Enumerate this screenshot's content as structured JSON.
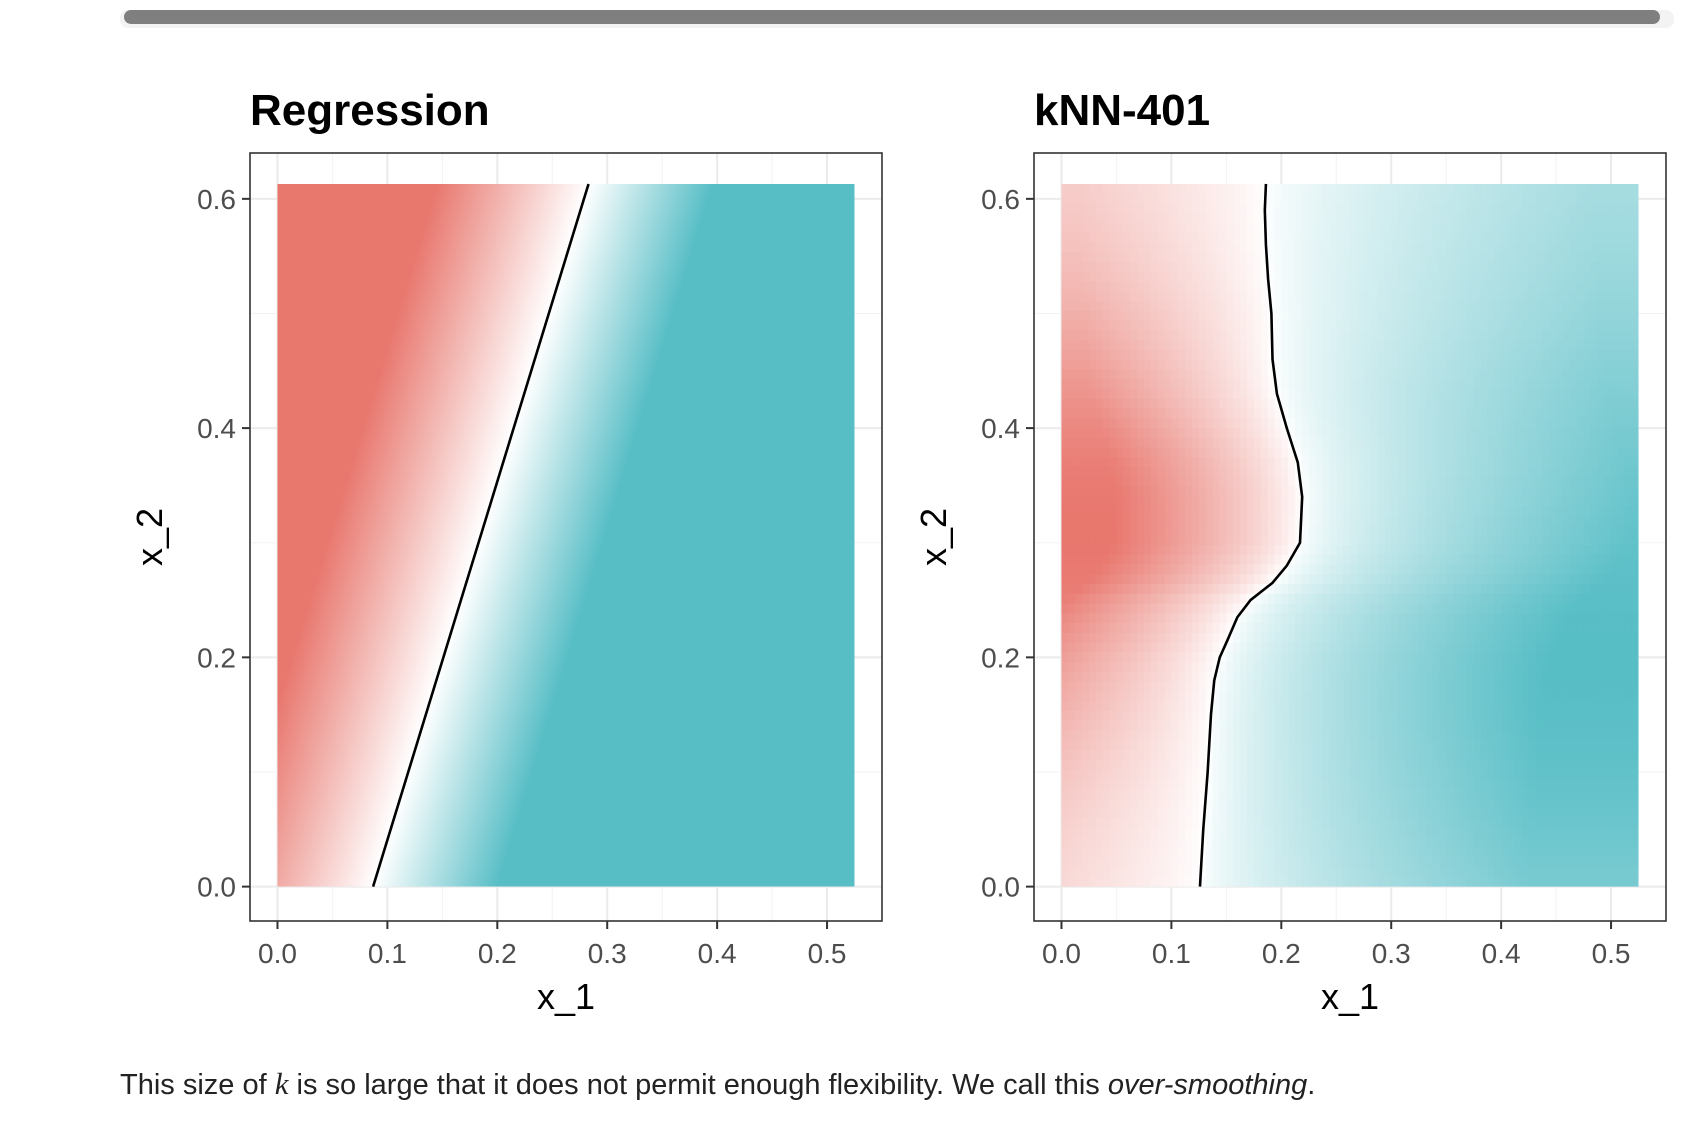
{
  "caption": {
    "before_k": "This size of ",
    "k": "k",
    "after_k": " is so large that it does not permit enough flexibility. We call this ",
    "emphasis": "over-smoothing",
    "end": "."
  },
  "colors": {
    "red": "#E8776E",
    "teal": "#58BEC6",
    "panel_border": "#333333",
    "grid": "#EBEBEB"
  },
  "chart_data": [
    {
      "type": "heatmap",
      "title": "Regression",
      "xlabel": "x_1",
      "ylabel": "x_2",
      "xlim": [
        -0.025,
        0.55
      ],
      "ylim": [
        -0.03,
        0.64
      ],
      "xticks": [
        "0.0",
        "0.1",
        "0.2",
        "0.3",
        "0.4",
        "0.5"
      ],
      "yticks": [
        "0.0",
        "0.2",
        "0.4",
        "0.6"
      ],
      "fill_extent": {
        "x": [
          0.0,
          0.525
        ],
        "y": [
          0.0,
          0.613
        ]
      },
      "grid": true,
      "boundary": {
        "x": [
          0.087,
          0.283
        ],
        "y": [
          0.0,
          0.613
        ]
      }
    },
    {
      "type": "heatmap",
      "title": "kNN-401",
      "xlabel": "x_1",
      "ylabel": "x_2",
      "xlim": [
        -0.025,
        0.55
      ],
      "ylim": [
        -0.03,
        0.64
      ],
      "xticks": [
        "0.0",
        "0.1",
        "0.2",
        "0.3",
        "0.4",
        "0.5"
      ],
      "yticks": [
        "0.0",
        "0.2",
        "0.4",
        "0.6"
      ],
      "fill_extent": {
        "x": [
          0.0,
          0.525
        ],
        "y": [
          0.0,
          0.613
        ]
      },
      "grid": true,
      "boundary": {
        "x": [
          0.126,
          0.129,
          0.133,
          0.136,
          0.139,
          0.144,
          0.151,
          0.16,
          0.172,
          0.192,
          0.205,
          0.217,
          0.219,
          0.215,
          0.205,
          0.196,
          0.192,
          0.191,
          0.188,
          0.186,
          0.185,
          0.186
        ],
        "y": [
          0.0,
          0.05,
          0.1,
          0.15,
          0.18,
          0.2,
          0.215,
          0.235,
          0.25,
          0.265,
          0.28,
          0.3,
          0.34,
          0.37,
          0.4,
          0.43,
          0.46,
          0.5,
          0.53,
          0.56,
          0.59,
          0.613
        ]
      }
    }
  ]
}
